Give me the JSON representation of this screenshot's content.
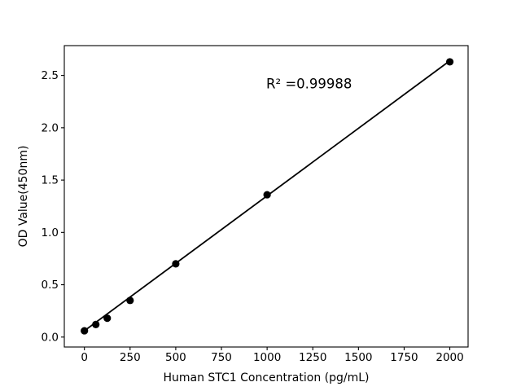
{
  "chart_data": {
    "type": "scatter",
    "title": "",
    "xlabel": "Human STC1 Concentration (pg/mL)",
    "ylabel": "OD Value(450nm)",
    "x": [
      0,
      62.5,
      125,
      250,
      500,
      1000,
      2000
    ],
    "y": [
      0.06,
      0.12,
      0.18,
      0.35,
      0.7,
      1.36,
      2.63
    ],
    "fit_line": {
      "x": [
        0,
        2000
      ],
      "y": [
        0.06,
        2.64
      ]
    },
    "annotation": {
      "text": "R² =0.99988",
      "x": 1230,
      "y": 2.42
    },
    "r_squared": 0.99988,
    "xticks": [
      0,
      250,
      500,
      750,
      1000,
      1250,
      1500,
      1750,
      2000
    ],
    "xtick_labels": [
      "0",
      "250",
      "500",
      "750",
      "1000",
      "1250",
      "1500",
      "1750",
      "2000"
    ],
    "yticks": [
      0.0,
      0.5,
      1.0,
      1.5,
      2.0,
      2.5
    ],
    "ytick_labels": [
      "0.0",
      "0.5",
      "1.0",
      "1.5",
      "2.0",
      "2.5"
    ],
    "xlim": [
      -110,
      2100
    ],
    "ylim": [
      -0.095,
      2.785
    ],
    "grid": false,
    "legend": null,
    "marker_color": "#000000",
    "line_color": "#000000",
    "axis_color": "#000000",
    "text_color": "#000000",
    "background_color": "#ffffff"
  }
}
